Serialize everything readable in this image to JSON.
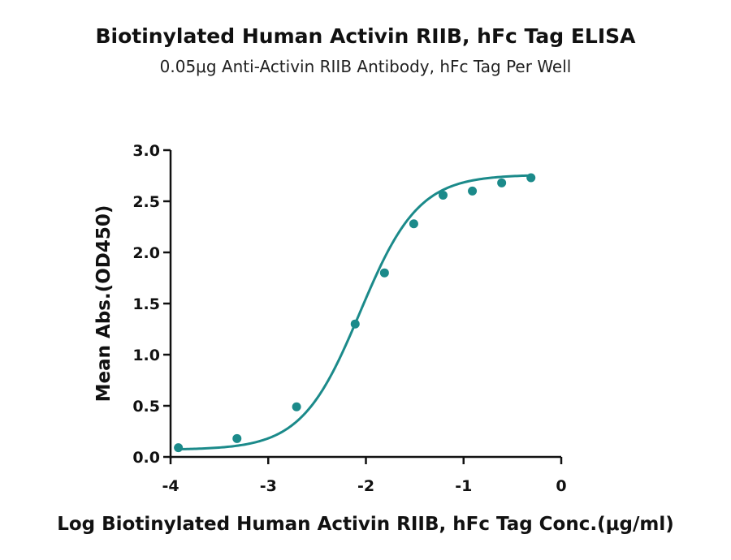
{
  "chart_data": {
    "type": "scatter",
    "title": "Biotinylated Human Activin RIIB, hFc Tag ELISA",
    "subtitle": "0.05μg Anti-Activin RIIB Antibody, hFc Tag Per Well",
    "xlabel": "Log Biotinylated Human Activin RIIB, hFc Tag Conc.(μg/ml)",
    "ylabel": "Mean Abs.(OD450)",
    "xlim": [
      -4,
      0
    ],
    "ylim": [
      0,
      3.0
    ],
    "x_ticks": [
      -4,
      -3,
      -2,
      -1,
      0
    ],
    "x_tick_labels": [
      "-4",
      "-3",
      "-2",
      "-1",
      "0"
    ],
    "y_ticks": [
      0,
      0.5,
      1.0,
      1.5,
      2.0,
      2.5,
      3.0
    ],
    "y_tick_labels": [
      "0.0",
      "0.5",
      "1.0",
      "1.5",
      "2.0",
      "2.5",
      "3.0"
    ],
    "grid": false,
    "color": "#1b8a8a",
    "series": [
      {
        "x": [
          -3.92,
          -3.32,
          -2.71,
          -2.11,
          -1.81,
          -1.51,
          -1.21,
          -0.91,
          -0.61,
          -0.31
        ],
        "y": [
          0.09,
          0.18,
          0.49,
          1.3,
          1.8,
          2.28,
          2.56,
          2.6,
          2.68,
          2.73
        ],
        "fit": "4PL sigmoid"
      }
    ]
  }
}
